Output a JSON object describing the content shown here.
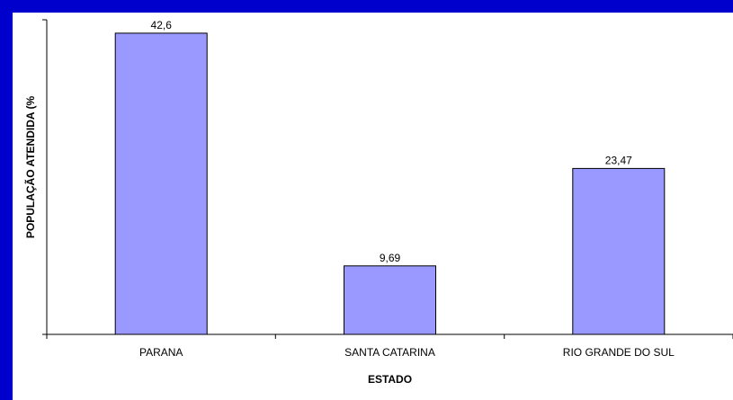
{
  "chart_data": {
    "type": "bar",
    "title": "",
    "xlabel": "ESTADO",
    "ylabel": "POPULAÇÃO ATENDIDA (%",
    "categories": [
      "PARANA",
      "SANTA CATARINA",
      "RIO GRANDE DO SUL"
    ],
    "values": [
      42.6,
      9.69,
      23.47
    ],
    "value_labels": [
      "42,6",
      "9,69",
      "23,47"
    ],
    "ylim": [
      0,
      44.5
    ],
    "grid": false,
    "legend": "none",
    "colors": {
      "bar_fill": "#9999ff",
      "bar_stroke": "#000000",
      "plot_background": "#ffffff",
      "outer_background": "#0000cc"
    }
  }
}
